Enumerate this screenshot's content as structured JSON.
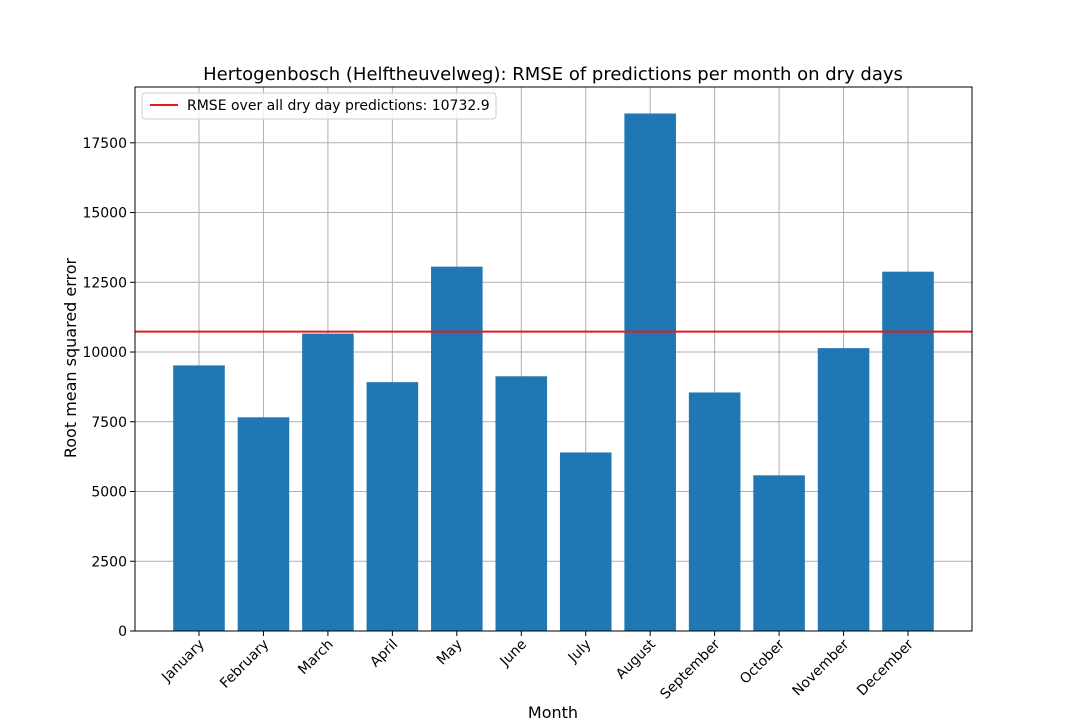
{
  "chart_data": {
    "type": "bar",
    "title": "Hertogenbosch (Helftheuvelweg): RMSE of predictions per month on dry days",
    "xlabel": "Month",
    "ylabel": "Root mean squared error",
    "categories": [
      "January",
      "February",
      "March",
      "April",
      "May",
      "June",
      "July",
      "August",
      "September",
      "October",
      "November",
      "December"
    ],
    "values": [
      9520,
      7660,
      10660,
      8920,
      13060,
      9130,
      6400,
      18550,
      8550,
      5580,
      10140,
      12880
    ],
    "ylim": [
      0,
      19500
    ],
    "yticks": [
      0,
      2500,
      5000,
      7500,
      10000,
      12500,
      15000,
      17500
    ],
    "ytick_labels": [
      "0",
      "2500",
      "5000",
      "7500",
      "10000",
      "12500",
      "15000",
      "17500"
    ],
    "reference_line": {
      "value": 10732.9,
      "label": "RMSE over all dry day predictions: 10732.9",
      "color": "#e31a1c"
    },
    "bar_color": "#1f77b4",
    "grid": true,
    "legend_position": "top-left",
    "xtick_rotation": 45
  }
}
